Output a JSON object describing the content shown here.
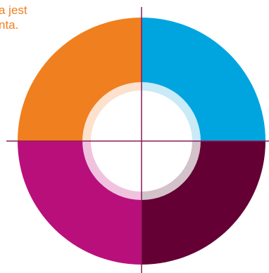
{
  "caption": {
    "line_1": "a jest",
    "line_2": "nta."
  },
  "colors": {
    "caption": "#f07f1f",
    "quadrant_top_left": "#f07f1f",
    "quadrant_top_right": "#00a5e0",
    "quadrant_bottom_left": "#b90f7b",
    "quadrant_bottom_right": "#640033",
    "axis_line": "#8a1a5a",
    "inner_ring_top_left": "#fde1cd",
    "inner_ring_top_right": "#c9eaf7",
    "inner_ring_bottom_left": "#efc3de",
    "inner_ring_bottom_right": "#d3c2ca",
    "center": "#ffffff"
  }
}
